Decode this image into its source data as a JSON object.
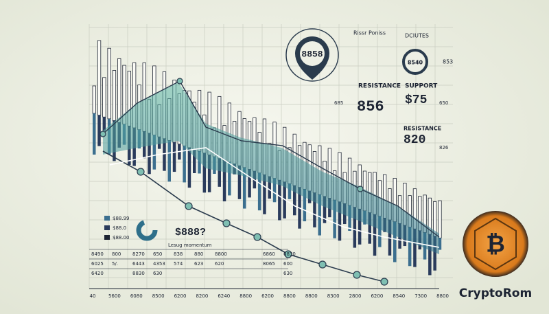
{
  "callout": {
    "value": "8858"
  },
  "notes": {
    "left_title": "Rissr Poniss",
    "right_title": "DCIUTES",
    "small_badge": "8540",
    "side_top": "853"
  },
  "panels": [
    {
      "label": "RESISTANCE",
      "value": "856"
    },
    {
      "label": "SUPPORT",
      "value": "$75"
    },
    {
      "label": "RESISTANCE",
      "value": "820"
    }
  ],
  "side_values": [
    "685",
    "650",
    "826"
  ],
  "legend": [
    "$88.99",
    "$88.0",
    "$88.00"
  ],
  "donut_label": "$888?",
  "caption": "Lesug momentum",
  "table": {
    "rows": [
      [
        "8490",
        "800",
        "8270",
        "650",
        "838",
        "880",
        "8800",
        "6860",
        "6830"
      ],
      [
        "6025",
        "5/.",
        "6443",
        "4353",
        "574",
        "623",
        "620",
        "8065",
        "600"
      ],
      [
        "6420",
        "",
        "8830",
        "630",
        "",
        "",
        "",
        "",
        "630"
      ]
    ]
  },
  "x_axis": [
    "40",
    "5600",
    "6080",
    "8500",
    "6200",
    "8200",
    "6240",
    "8800",
    "6200",
    "8800",
    "8800",
    "8300",
    "2800",
    "6200",
    "8540",
    "7300",
    "8800"
  ],
  "brand": "CryptoRom"
}
